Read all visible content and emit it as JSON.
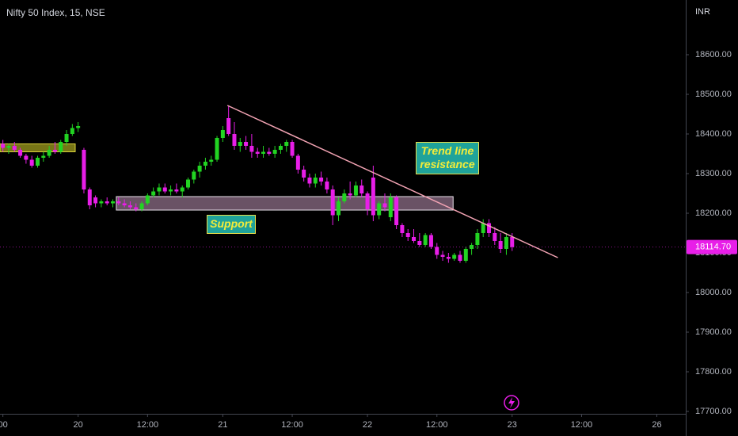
{
  "chart_data": {
    "type": "candlestick",
    "title": "Nifty 50 Index, 15, NSE",
    "currency": "INR",
    "up_color": "#22d422",
    "down_color": "#e81ee8",
    "open": [
      18375,
      18365,
      18370,
      18360,
      18345,
      18335,
      18320,
      18340,
      18345,
      18360,
      18355,
      18380,
      18400,
      18415,
      18360,
      18260,
      18240,
      18225,
      18230,
      18225,
      18230,
      18225,
      18220,
      18215,
      18210,
      18225,
      18245,
      18255,
      18265,
      18255,
      18260,
      18255,
      18265,
      18285,
      18305,
      18320,
      18330,
      18335,
      18390,
      18440,
      18400,
      18370,
      18380,
      18370,
      18355,
      18350,
      18355,
      18350,
      18360,
      18370,
      18380,
      18345,
      18310,
      18290,
      18275,
      18290,
      18280,
      18260,
      18195,
      18230,
      18250,
      18245,
      18270,
      18250,
      18290,
      18195,
      18225,
      18190,
      18240,
      18170,
      18150,
      18140,
      18130,
      18120,
      18145,
      18115,
      18095,
      18090,
      18085,
      18095,
      18080,
      18110,
      18120,
      18150,
      18175,
      18150,
      18130,
      18110,
      18140
    ],
    "high": [
      18385,
      18375,
      18380,
      18365,
      18350,
      18345,
      18345,
      18355,
      18370,
      18380,
      18385,
      18410,
      18425,
      18430,
      18365,
      18265,
      18245,
      18235,
      18240,
      18235,
      18240,
      18235,
      18230,
      18225,
      18230,
      18250,
      18265,
      18275,
      18275,
      18270,
      18275,
      18270,
      18290,
      18310,
      18330,
      18340,
      18345,
      18395,
      18420,
      18470,
      18430,
      18390,
      18395,
      18400,
      18365,
      18370,
      18365,
      18370,
      18375,
      18385,
      18385,
      18350,
      18320,
      18300,
      18300,
      18305,
      18290,
      18270,
      18240,
      18260,
      18280,
      18280,
      18285,
      18255,
      18320,
      18230,
      18250,
      18250,
      18245,
      18175,
      18160,
      18160,
      18150,
      18150,
      18150,
      18125,
      18105,
      18100,
      18100,
      18105,
      18115,
      18125,
      18160,
      18185,
      18185,
      18165,
      18150,
      18150,
      18150
    ],
    "low": [
      18355,
      18350,
      18355,
      18340,
      18325,
      18315,
      18315,
      18330,
      18340,
      18350,
      18350,
      18370,
      18395,
      18405,
      18250,
      18210,
      18215,
      18215,
      18220,
      18215,
      18220,
      18215,
      18210,
      18205,
      18205,
      18220,
      18240,
      18245,
      18250,
      18245,
      18250,
      18240,
      18260,
      18275,
      18290,
      18310,
      18320,
      18330,
      18380,
      18395,
      18360,
      18355,
      18360,
      18340,
      18340,
      18340,
      18345,
      18340,
      18350,
      18355,
      18340,
      18300,
      18280,
      18265,
      18265,
      18270,
      18250,
      18170,
      18180,
      18225,
      18235,
      18240,
      18240,
      18195,
      18180,
      18185,
      18205,
      18180,
      18160,
      18140,
      18130,
      18125,
      18115,
      18115,
      18110,
      18085,
      18080,
      18075,
      18080,
      18075,
      18075,
      18095,
      18110,
      18140,
      18140,
      18120,
      18100,
      18095,
      18105
    ],
    "close": [
      18365,
      18370,
      18360,
      18345,
      18335,
      18320,
      18340,
      18345,
      18360,
      18355,
      18380,
      18400,
      18415,
      18420,
      18260,
      18220,
      18225,
      18230,
      18225,
      18230,
      18225,
      18220,
      18215,
      18210,
      18225,
      18245,
      18255,
      18265,
      18255,
      18260,
      18255,
      18265,
      18285,
      18305,
      18320,
      18330,
      18335,
      18390,
      18410,
      18400,
      18370,
      18380,
      18370,
      18355,
      18350,
      18355,
      18350,
      18360,
      18370,
      18380,
      18345,
      18310,
      18290,
      18275,
      18290,
      18280,
      18260,
      18195,
      18230,
      18250,
      18245,
      18270,
      18250,
      18210,
      18195,
      18225,
      18215,
      18240,
      18170,
      18150,
      18140,
      18130,
      18120,
      18145,
      18115,
      18095,
      18090,
      18085,
      18095,
      18080,
      18110,
      18120,
      18150,
      18175,
      18150,
      18130,
      18110,
      18140,
      18114.7
    ],
    "xlim": [
      -0.5,
      118
    ],
    "xticks": [
      {
        "value": 0,
        "label": "00"
      },
      {
        "value": 13,
        "label": "20"
      },
      {
        "value": 25,
        "label": "12:00"
      },
      {
        "value": 38,
        "label": "21"
      },
      {
        "value": 50,
        "label": "12:00"
      },
      {
        "value": 63,
        "label": "22"
      },
      {
        "value": 75,
        "label": "12:00"
      },
      {
        "value": 88,
        "label": "23"
      },
      {
        "value": 100,
        "label": "12:00"
      },
      {
        "value": 113,
        "label": "26"
      }
    ],
    "ylim": [
      17694,
      18738
    ],
    "yticks": [
      {
        "value": 17700,
        "label": "17700.00"
      },
      {
        "value": 17800,
        "label": "17800.00"
      },
      {
        "value": 17900,
        "label": "17900.00"
      },
      {
        "value": 18000,
        "label": "18000.00"
      },
      {
        "value": 18100,
        "label": "18100.00"
      },
      {
        "value": 18200,
        "label": "18200.00"
      },
      {
        "value": 18300,
        "label": "18300.00"
      },
      {
        "value": 18400,
        "label": "18400.00"
      },
      {
        "value": 18500,
        "label": "18500.00"
      },
      {
        "value": 18600,
        "label": "18600.00"
      }
    ],
    "grid": false,
    "last_price": {
      "value": 18114.7,
      "label": "18114.70"
    },
    "zones": [
      {
        "x": [
          -0.5,
          12.5
        ],
        "y": [
          18355,
          18375
        ],
        "color": "#8c8a1a",
        "border": "#d9d23a"
      },
      {
        "x": [
          19.6,
          77.8
        ],
        "y": [
          18208,
          18242
        ],
        "color": "#7d6077",
        "border": "#e8e0ea"
      }
    ],
    "trend_line": {
      "x": [
        38.8,
        95.9
      ],
      "y": [
        18472,
        18088
      ],
      "color": "#f2a3b3"
    },
    "annotations": [
      "Trend line resistance",
      "Support"
    ]
  }
}
